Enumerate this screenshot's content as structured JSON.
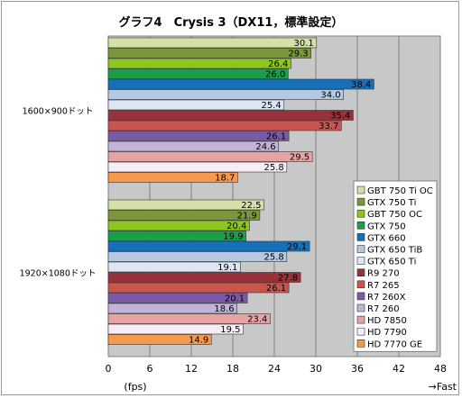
{
  "chart_data": {
    "type": "bar",
    "orientation": "horizontal",
    "title": "グラフ4　Crysis 3（DX11，標準設定）",
    "xlabel": "(fps)",
    "x_direction_label": "→Fast",
    "xlim": [
      0,
      48
    ],
    "xticks": [
      0,
      6,
      12,
      18,
      24,
      30,
      36,
      42,
      48
    ],
    "grid": "vertical",
    "legend_position": "right",
    "groups": [
      "1600×900ドット",
      "1920×1080ドット"
    ],
    "series": [
      {
        "name": "GBT 750 Ti OC",
        "color": "#d4e0a6",
        "values": [
          30.1,
          22.5
        ]
      },
      {
        "name": "GTX 750 Ti",
        "color": "#7a973b",
        "values": [
          29.3,
          21.9
        ]
      },
      {
        "name": "GBT 750 OC",
        "color": "#8cc61e",
        "values": [
          26.4,
          20.4
        ]
      },
      {
        "name": "GTX 750",
        "color": "#1a9e4a",
        "values": [
          26.0,
          19.9
        ]
      },
      {
        "name": "GTX 660",
        "color": "#1570b8",
        "values": [
          38.4,
          29.1
        ]
      },
      {
        "name": "GTX 650 TiB",
        "color": "#b3c9e4",
        "values": [
          34.0,
          25.8
        ]
      },
      {
        "name": "GTX 650 Ti",
        "color": "#dde7f3",
        "values": [
          25.4,
          19.1
        ]
      },
      {
        "name": "R9 270",
        "color": "#96323a",
        "values": [
          35.4,
          27.8
        ]
      },
      {
        "name": "R7 265",
        "color": "#c9564e",
        "values": [
          33.7,
          26.1
        ]
      },
      {
        "name": "R7 260X",
        "color": "#7a5aa6",
        "values": [
          26.1,
          20.1
        ]
      },
      {
        "name": "R7 260",
        "color": "#c3b3d8",
        "values": [
          24.6,
          18.6
        ]
      },
      {
        "name": "HD 7850",
        "color": "#e6a3a3",
        "values": [
          29.5,
          23.4
        ]
      },
      {
        "name": "HD 7790",
        "color": "#f6eef4",
        "values": [
          25.8,
          19.5
        ]
      },
      {
        "name": "HD 7770 GE",
        "color": "#f59a4c",
        "values": [
          18.7,
          14.9
        ]
      }
    ]
  }
}
